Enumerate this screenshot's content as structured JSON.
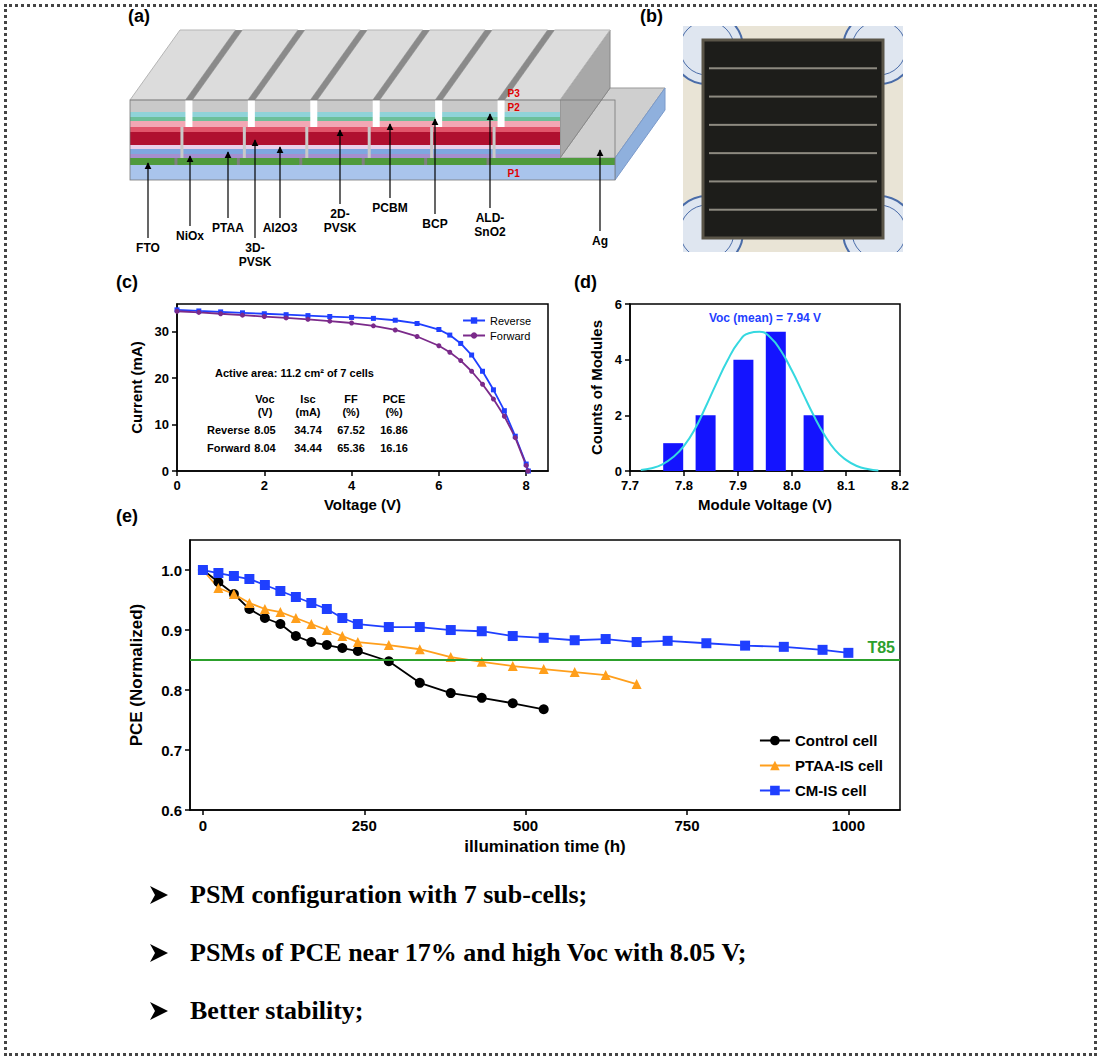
{
  "panels": {
    "a": {
      "panel_label": "(a)",
      "layers": [
        "FTO",
        "NiOx",
        "PTAA",
        "Al2O3",
        "3D-PVSK",
        "2D-PVSK",
        "PCBM",
        "BCP",
        "ALD-SnO2",
        "Ag"
      ],
      "scribes": [
        "P3",
        "P2",
        "P1"
      ]
    },
    "b": {
      "panel_label": "(b)"
    }
  },
  "chart_data": [
    {
      "panel_label": "(c)",
      "type": "line",
      "x_label": "Voltage (V)",
      "y_label": "Current (mA)",
      "xlim": [
        0,
        8.5
      ],
      "xticks": [
        0,
        2,
        4,
        6,
        8
      ],
      "ylim": [
        0,
        36
      ],
      "yticks": [
        0,
        10,
        20,
        30
      ],
      "grid": false,
      "legend": "upper right",
      "annotation": "Active area: 11.2 cm² of 7 cells",
      "table": {
        "columns": [
          "Voc (V)",
          "Isc (mA)",
          "FF (%)",
          "PCE (%)"
        ],
        "rows": [
          {
            "label": "Reverse",
            "values": [
              8.05,
              34.74,
              67.52,
              16.86
            ]
          },
          {
            "label": "Forward",
            "values": [
              8.04,
              34.44,
              65.36,
              16.16
            ]
          }
        ]
      },
      "series": [
        {
          "name": "Reverse",
          "color": "#1f3fff",
          "marker": "square",
          "x": [
            0,
            0.5,
            1,
            1.5,
            2,
            2.5,
            3,
            3.5,
            4,
            4.5,
            5,
            5.5,
            6,
            6.25,
            6.5,
            6.75,
            7,
            7.25,
            7.5,
            7.75,
            8,
            8.05
          ],
          "values": [
            34.74,
            34.5,
            34.3,
            34.1,
            33.9,
            33.7,
            33.5,
            33.3,
            33.1,
            32.9,
            32.5,
            31.8,
            30.5,
            29.3,
            27.5,
            25,
            21.5,
            17.5,
            13,
            7.5,
            1.5,
            0
          ]
        },
        {
          "name": "Forward",
          "color": "#7b2a8a",
          "marker": "circle",
          "x": [
            0,
            0.5,
            1,
            1.5,
            2,
            2.5,
            3,
            3.5,
            4,
            4.5,
            5,
            5.5,
            6,
            6.25,
            6.5,
            6.75,
            7,
            7.25,
            7.5,
            7.75,
            8,
            8.04
          ],
          "values": [
            34.44,
            34.2,
            33.9,
            33.6,
            33.3,
            33.0,
            32.7,
            32.3,
            31.9,
            31.3,
            30.4,
            29.0,
            27.0,
            25.6,
            23.8,
            21.5,
            18.7,
            15.5,
            11.8,
            7.2,
            1.2,
            0
          ]
        }
      ]
    },
    {
      "panel_label": "(d)",
      "type": "bar",
      "x_label": "Module Voltage (V)",
      "y_label": "Counts of Modules",
      "xlim": [
        7.7,
        8.2
      ],
      "xticks": [
        7.7,
        7.8,
        7.9,
        {
          "value": 8,
          "label": "8.0"
        },
        8.1,
        8.2
      ],
      "ylim": [
        0,
        6
      ],
      "yticks": [
        0,
        2,
        4,
        6
      ],
      "grid": false,
      "annotation": "Voc (mean) = 7.94 V",
      "x": [
        7.78,
        7.84,
        7.91,
        7.97,
        8.04
      ],
      "values": [
        1,
        2,
        4,
        5,
        2
      ],
      "color": "#1414ff",
      "fit": {
        "type": "line",
        "color": "#35d8e0",
        "x": [
          7.72,
          7.74,
          7.76,
          7.78,
          7.8,
          7.82,
          7.84,
          7.86,
          7.88,
          7.9,
          7.92,
          7.94,
          7.96,
          7.98,
          8.0,
          8.02,
          8.04,
          8.06,
          8.08,
          8.1,
          8.12,
          8.14,
          8.16
        ],
        "values": [
          0.04,
          0.1,
          0.24,
          0.5,
          0.9,
          1.5,
          2.3,
          3.15,
          3.95,
          4.6,
          4.95,
          5.0,
          4.8,
          4.3,
          3.6,
          2.8,
          2.0,
          1.3,
          0.75,
          0.4,
          0.18,
          0.07,
          0.02
        ]
      }
    },
    {
      "panel_label": "(e)",
      "type": "line",
      "x_label": "illumination time (h)",
      "y_label": "PCE (Normalized)",
      "xlim": [
        -20,
        1080
      ],
      "xticks": [
        0,
        250,
        500,
        750,
        1000
      ],
      "ylim": [
        0.6,
        1.05
      ],
      "yticks": [
        0.6,
        0.7,
        0.8,
        0.9,
        {
          "value": 1,
          "label": "1.0"
        }
      ],
      "grid": false,
      "legend": "lower right",
      "reference_line": {
        "label": "T85",
        "value": 0.85,
        "color": "#2ca02c"
      },
      "series": [
        {
          "name": "Control cell",
          "color": "#000000",
          "marker": "circle",
          "x": [
            0,
            24,
            48,
            72,
            96,
            120,
            144,
            168,
            192,
            216,
            240,
            288,
            336,
            384,
            432,
            480,
            528
          ],
          "values": [
            1.0,
            0.98,
            0.96,
            0.935,
            0.92,
            0.91,
            0.89,
            0.88,
            0.875,
            0.87,
            0.865,
            0.848,
            0.812,
            0.795,
            0.787,
            0.778,
            0.768
          ]
        },
        {
          "name": "PTAA-IS cell",
          "color": "#ff9f1c",
          "marker": "triangle",
          "x": [
            0,
            24,
            48,
            72,
            96,
            120,
            144,
            168,
            192,
            216,
            240,
            288,
            336,
            384,
            432,
            480,
            528,
            576,
            624,
            672
          ],
          "values": [
            1.0,
            0.97,
            0.96,
            0.945,
            0.935,
            0.93,
            0.92,
            0.91,
            0.9,
            0.89,
            0.88,
            0.875,
            0.868,
            0.855,
            0.847,
            0.84,
            0.835,
            0.83,
            0.825,
            0.81
          ]
        },
        {
          "name": "CM-IS cell",
          "color": "#1f3fff",
          "marker": "square",
          "x": [
            0,
            24,
            48,
            72,
            96,
            120,
            144,
            168,
            192,
            216,
            240,
            288,
            336,
            384,
            432,
            480,
            528,
            576,
            624,
            672,
            720,
            780,
            840,
            900,
            960,
            1000
          ],
          "values": [
            1.0,
            0.995,
            0.99,
            0.985,
            0.975,
            0.965,
            0.955,
            0.945,
            0.935,
            0.92,
            0.91,
            0.905,
            0.905,
            0.9,
            0.898,
            0.89,
            0.887,
            0.883,
            0.885,
            0.88,
            0.882,
            0.878,
            0.874,
            0.872,
            0.867,
            0.862
          ]
        }
      ]
    }
  ],
  "bullets": [
    "PSM configuration with 7 sub-cells;",
    "PSMs of PCE near 17% and high Voc with 8.05 V;",
    "Better stability;"
  ]
}
